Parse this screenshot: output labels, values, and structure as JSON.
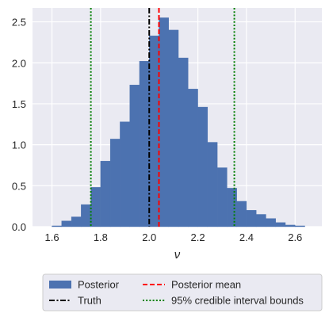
{
  "chart_data": {
    "type": "bar",
    "title": "",
    "xlabel": "ν",
    "ylabel": "",
    "xlim": [
      1.52,
      2.71
    ],
    "ylim": [
      0,
      2.67
    ],
    "xticks": [
      1.6,
      1.8,
      2.0,
      2.2,
      2.4,
      2.6
    ],
    "xtick_labels": [
      "1.6",
      "1.8",
      "2.0",
      "2.2",
      "2.4",
      "2.6"
    ],
    "yticks": [
      0.0,
      0.5,
      1.0,
      1.5,
      2.0,
      2.5
    ],
    "ytick_labels": [
      "0.0",
      "0.5",
      "1.0",
      "1.5",
      "2.0",
      "2.5"
    ],
    "grid": true,
    "legend_position": "bottom-center",
    "histogram": {
      "name": "Posterior",
      "color": "#4c72b0",
      "bins": [
        {
          "x0": 1.6,
          "x1": 1.64,
          "height": 0.01
        },
        {
          "x0": 1.64,
          "x1": 1.68,
          "height": 0.07
        },
        {
          "x0": 1.68,
          "x1": 1.72,
          "height": 0.12
        },
        {
          "x0": 1.72,
          "x1": 1.76,
          "height": 0.27
        },
        {
          "x0": 1.76,
          "x1": 1.8,
          "height": 0.48
        },
        {
          "x0": 1.8,
          "x1": 1.84,
          "height": 0.8
        },
        {
          "x0": 1.84,
          "x1": 1.88,
          "height": 1.07
        },
        {
          "x0": 1.88,
          "x1": 1.92,
          "height": 1.28
        },
        {
          "x0": 1.92,
          "x1": 1.96,
          "height": 1.73
        },
        {
          "x0": 1.96,
          "x1": 2.0,
          "height": 2.02
        },
        {
          "x0": 2.0,
          "x1": 2.04,
          "height": 2.33
        },
        {
          "x0": 2.04,
          "x1": 2.08,
          "height": 2.55
        },
        {
          "x0": 2.08,
          "x1": 2.12,
          "height": 2.4
        },
        {
          "x0": 2.12,
          "x1": 2.16,
          "height": 2.06
        },
        {
          "x0": 2.16,
          "x1": 2.2,
          "height": 1.68
        },
        {
          "x0": 2.2,
          "x1": 2.24,
          "height": 1.46
        },
        {
          "x0": 2.24,
          "x1": 2.28,
          "height": 1.03
        },
        {
          "x0": 2.28,
          "x1": 2.32,
          "height": 0.72
        },
        {
          "x0": 2.32,
          "x1": 2.36,
          "height": 0.47
        },
        {
          "x0": 2.36,
          "x1": 2.4,
          "height": 0.31
        },
        {
          "x0": 2.4,
          "x1": 2.44,
          "height": 0.2
        },
        {
          "x0": 2.44,
          "x1": 2.48,
          "height": 0.15
        },
        {
          "x0": 2.48,
          "x1": 2.52,
          "height": 0.1
        },
        {
          "x0": 2.52,
          "x1": 2.56,
          "height": 0.05
        },
        {
          "x0": 2.56,
          "x1": 2.6,
          "height": 0.02
        },
        {
          "x0": 2.6,
          "x1": 2.64,
          "height": 0.01
        }
      ]
    },
    "lines": [
      {
        "name": "Truth",
        "x": 2.0,
        "color": "#000000",
        "style": "dash-dot"
      },
      {
        "name": "Posterior mean",
        "x": 2.04,
        "color": "#ff0000",
        "style": "dashed"
      },
      {
        "name": "95% credible interval bounds",
        "x": 1.76,
        "color": "#008000",
        "style": "dotted"
      },
      {
        "name": "95% credible interval bounds",
        "x": 2.35,
        "color": "#008000",
        "style": "dotted"
      }
    ],
    "legend": {
      "entries": [
        {
          "label": "Posterior",
          "kind": "patch",
          "color": "#4c72b0"
        },
        {
          "label": "Truth",
          "kind": "line",
          "color": "#000000",
          "style": "dash-dot"
        },
        {
          "label": "Posterior mean",
          "kind": "line",
          "color": "#ff0000",
          "style": "dashed"
        },
        {
          "label": "95% credible interval bounds",
          "kind": "line",
          "color": "#008000",
          "style": "dotted"
        }
      ]
    },
    "colors": {
      "plot_background": "#eaeaf2",
      "grid": "#ffffff"
    }
  }
}
